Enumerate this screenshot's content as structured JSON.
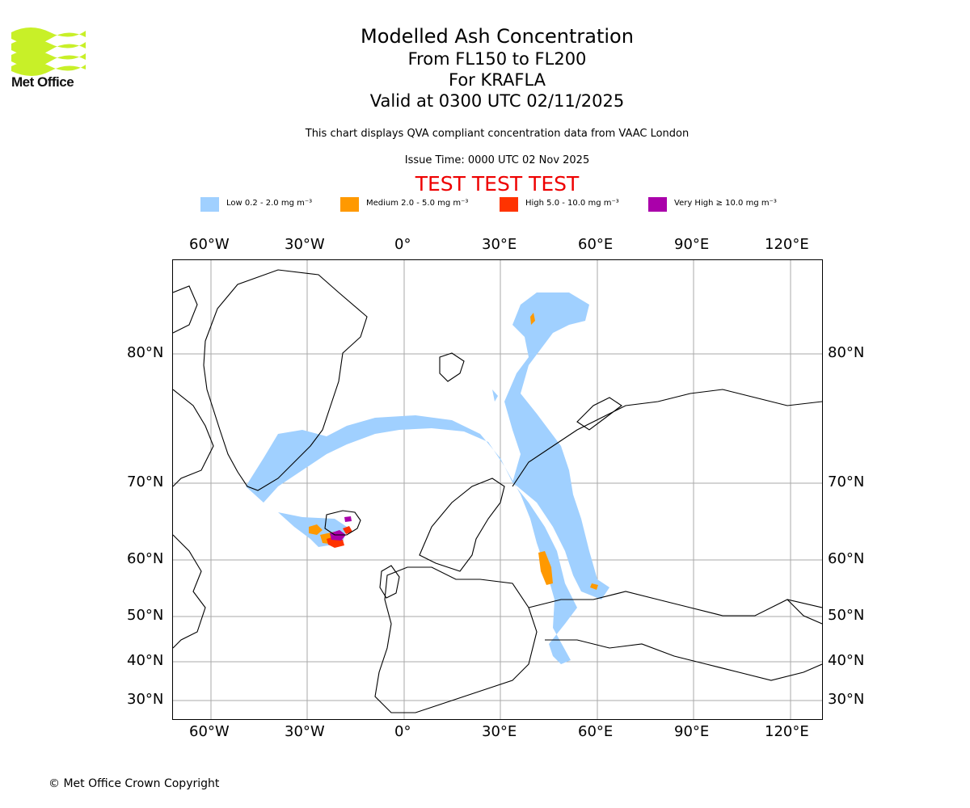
{
  "header": {
    "logo_text": "Met Office",
    "title": "Modelled Ash Concentration",
    "line2": "From FL150 to FL200",
    "line3": "For KRAFLA",
    "line4": "Valid at 0300 UTC 02/11/2025",
    "description": "This chart displays QVA compliant concentration data from VAAC London",
    "issue_time": "Issue Time: 0000 UTC 02 Nov 2025",
    "test_banner": "TEST TEST TEST"
  },
  "legend": [
    {
      "label": "Low 0.2 - 2.0 mg m⁻³",
      "color": "#a0d0ff"
    },
    {
      "label": "Medium 2.0 - 5.0 mg m⁻³",
      "color": "#ff9900"
    },
    {
      "label": "High 5.0 - 10.0 mg m⁻³",
      "color": "#ff3300"
    },
    {
      "label": "Very High ≥ 10.0 mg m⁻³",
      "color": "#aa00aa"
    }
  ],
  "axes": {
    "longitude_labels": [
      "60°W",
      "30°W",
      "0°",
      "30°E",
      "60°E",
      "90°E",
      "120°E"
    ],
    "latitude_labels": [
      "80°N",
      "70°N",
      "60°N",
      "50°N",
      "40°N",
      "30°N"
    ]
  },
  "colors": {
    "logo_green": "#c8f028",
    "test_red": "#ee0000",
    "gridline": "#aaaaaa",
    "coastline": "#000000"
  },
  "footer": {
    "copyright": "© Met Office Crown Copyright"
  }
}
